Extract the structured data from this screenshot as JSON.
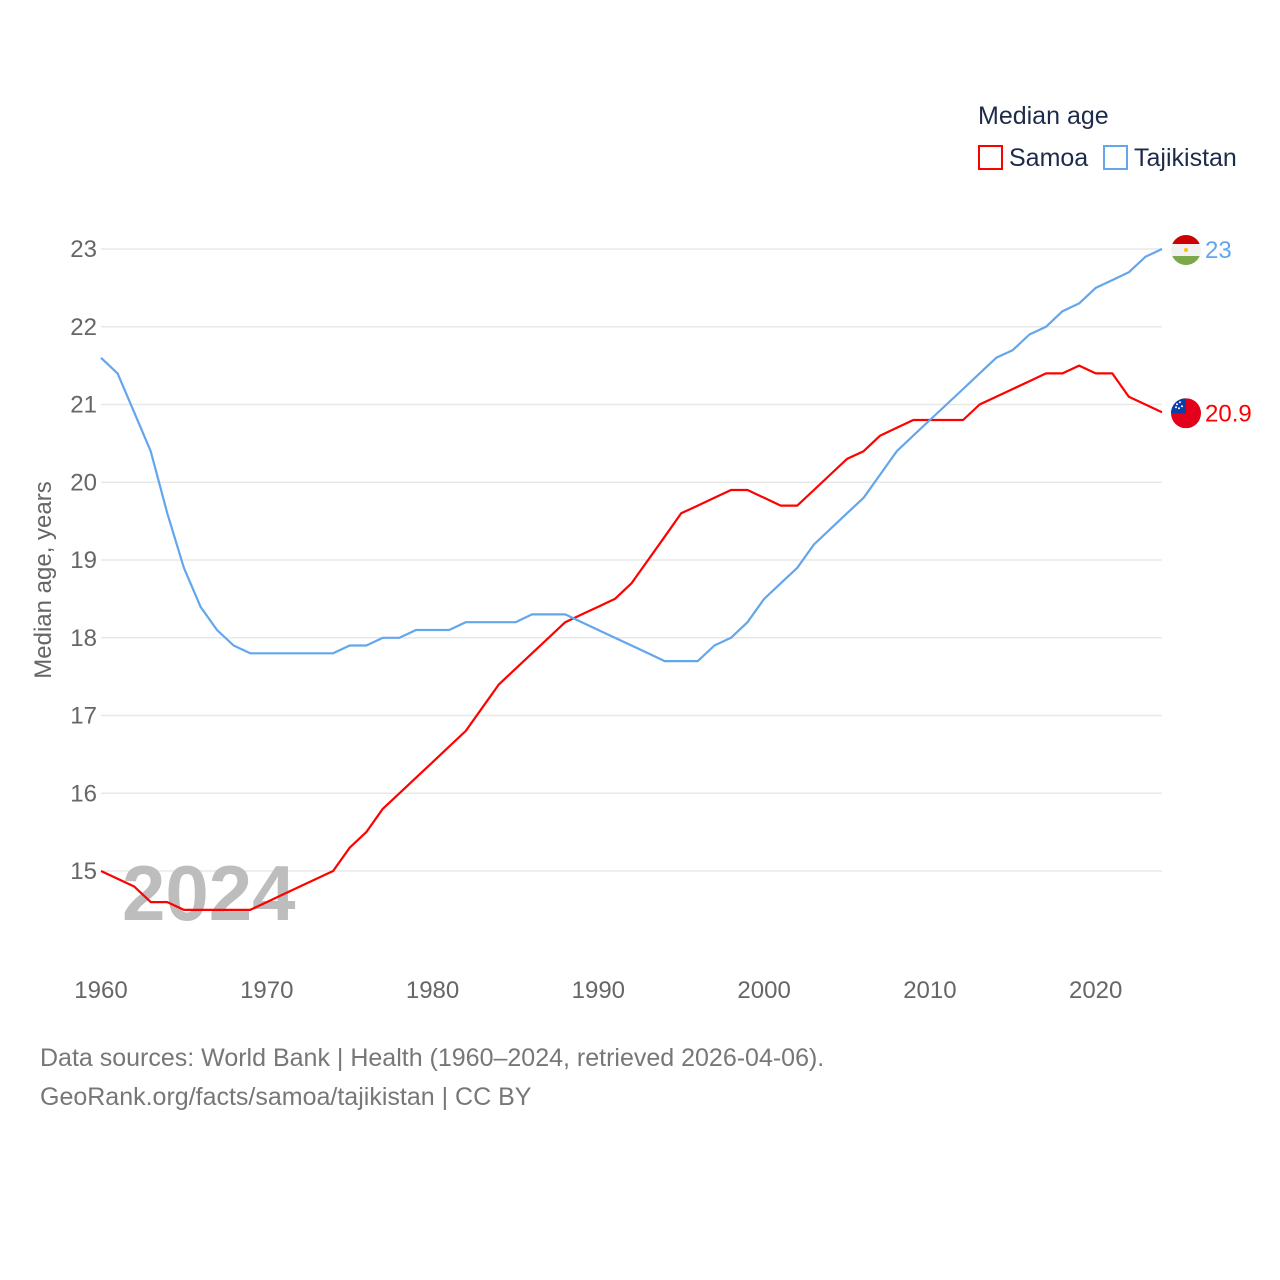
{
  "chart_data": {
    "type": "line",
    "title": "Median age",
    "ylabel": "Median age, years",
    "xlabel": "",
    "xlim": [
      1960,
      2024
    ],
    "ylim": [
      14.2,
      23.3
    ],
    "x_ticks": [
      1960,
      1970,
      1980,
      1990,
      2000,
      2010,
      2020
    ],
    "y_ticks": [
      15,
      16,
      17,
      18,
      19,
      20,
      21,
      22,
      23
    ],
    "grid": true,
    "legend_position": "top-right",
    "watermark_year": "2024",
    "x_start": 1960,
    "series": [
      {
        "name": "Samoa",
        "color": "#ff0000",
        "end_label": "20.9",
        "flag": "samoa-flag",
        "values": [
          15.0,
          14.9,
          14.8,
          14.6,
          14.6,
          14.5,
          14.5,
          14.5,
          14.5,
          14.5,
          14.6,
          14.7,
          14.8,
          14.9,
          15.0,
          15.3,
          15.5,
          15.8,
          16.0,
          16.2,
          16.4,
          16.6,
          16.8,
          17.1,
          17.4,
          17.6,
          17.8,
          18.0,
          18.2,
          18.3,
          18.4,
          18.5,
          18.7,
          19.0,
          19.3,
          19.6,
          19.7,
          19.8,
          19.9,
          19.9,
          19.8,
          19.7,
          19.7,
          19.9,
          20.1,
          20.3,
          20.4,
          20.6,
          20.7,
          20.8,
          20.8,
          20.8,
          20.8,
          21.0,
          21.1,
          21.2,
          21.3,
          21.4,
          21.4,
          21.5,
          21.4,
          21.4,
          21.1,
          21.0,
          20.9
        ]
      },
      {
        "name": "Tajikistan",
        "color": "#63a6ec",
        "end_label": "23",
        "flag": "tajikistan-flag",
        "values": [
          21.6,
          21.4,
          20.9,
          20.4,
          19.6,
          18.9,
          18.4,
          18.1,
          17.9,
          17.8,
          17.8,
          17.8,
          17.8,
          17.8,
          17.8,
          17.9,
          17.9,
          18.0,
          18.0,
          18.1,
          18.1,
          18.1,
          18.2,
          18.2,
          18.2,
          18.2,
          18.3,
          18.3,
          18.3,
          18.2,
          18.1,
          18.0,
          17.9,
          17.8,
          17.7,
          17.7,
          17.7,
          17.9,
          18.0,
          18.2,
          18.5,
          18.7,
          18.9,
          19.2,
          19.4,
          19.6,
          19.8,
          20.1,
          20.4,
          20.6,
          20.8,
          21.0,
          21.2,
          21.4,
          21.6,
          21.7,
          21.9,
          22.0,
          22.2,
          22.3,
          22.5,
          22.6,
          22.7,
          22.9,
          23.0
        ]
      }
    ]
  },
  "footer": {
    "line1": "Data sources: World Bank | Health (1960–2024, retrieved 2026-04-06).",
    "line2": "GeoRank.org/facts/samoa/tajikistan | CC BY"
  }
}
